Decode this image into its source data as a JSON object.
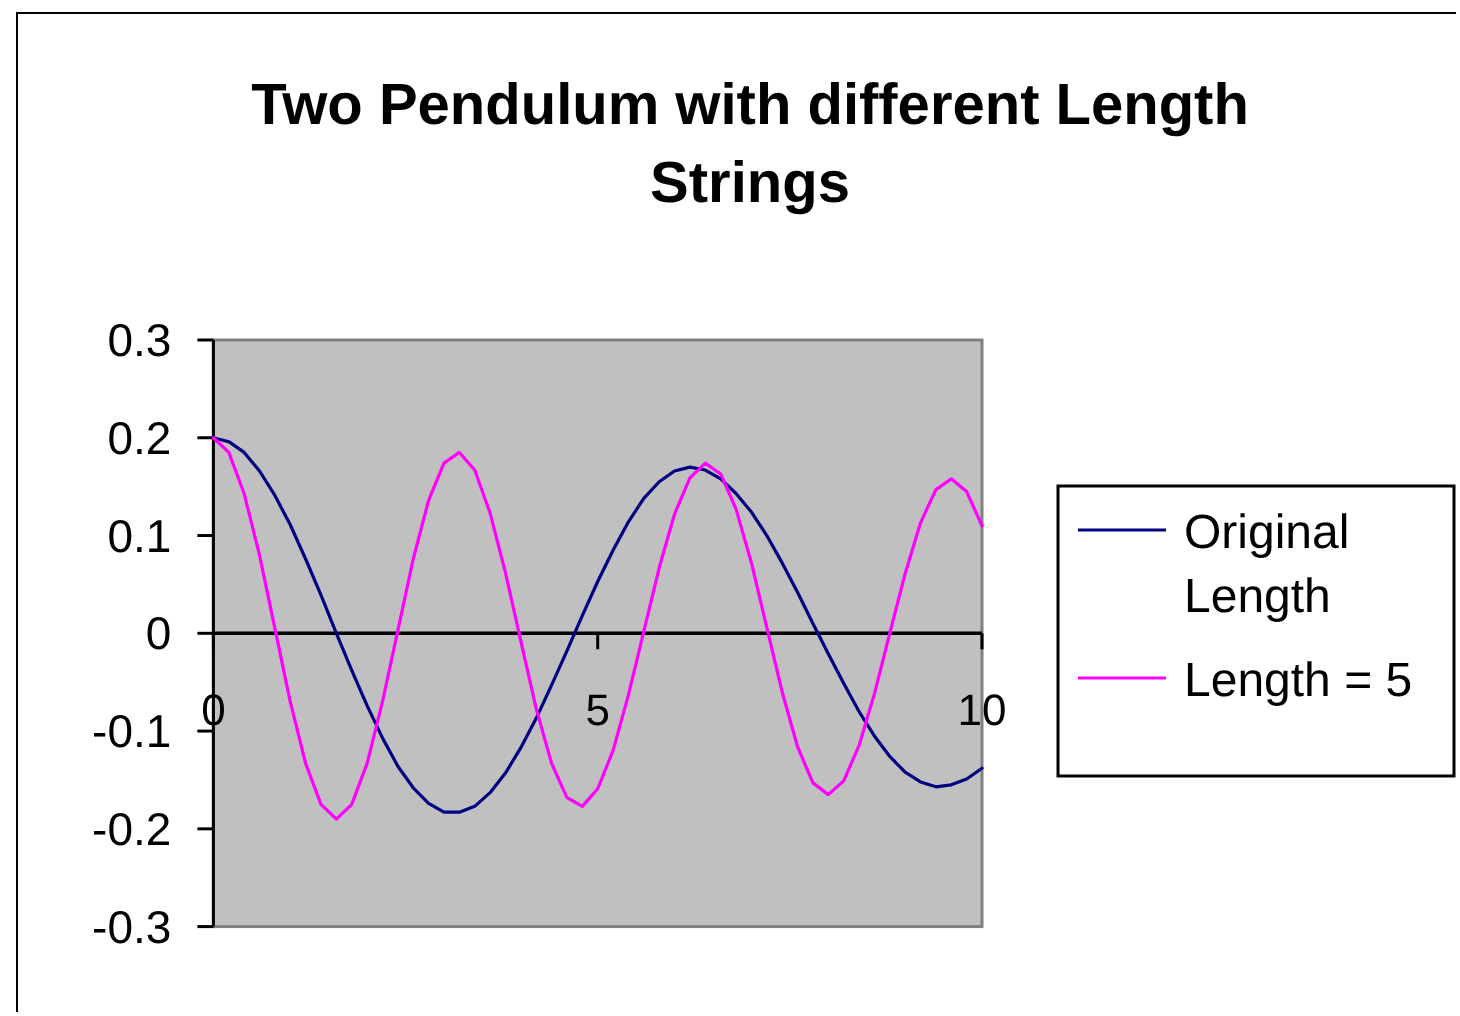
{
  "chart_data": {
    "type": "line",
    "title": "Two Pendulum with different Length Strings",
    "xlim": [
      0,
      10
    ],
    "xticks": [
      0,
      5,
      10
    ],
    "ylim": [
      -0.3,
      0.3
    ],
    "yticks": [
      -0.3,
      -0.2,
      -0.1,
      0,
      0.1,
      0.2,
      0.3
    ],
    "legend": "right",
    "x": [
      0,
      0.2,
      0.4,
      0.6,
      0.8,
      1,
      1.2,
      1.4,
      1.6,
      1.8,
      2,
      2.2,
      2.4,
      2.6,
      2.8,
      3,
      3.2,
      3.4,
      3.6,
      3.8,
      4,
      4.2,
      4.4,
      4.6,
      4.8,
      5,
      5.2,
      5.4,
      5.6,
      5.8,
      6,
      6.2,
      6.4,
      6.6,
      6.8,
      7,
      7.2,
      7.4,
      7.6,
      7.8,
      8,
      8.2,
      8.4,
      8.6,
      8.8,
      9,
      9.2,
      9.4,
      9.6,
      9.8,
      10
    ],
    "series": [
      {
        "name": "Original Length",
        "color": "#000080",
        "values": [
          0.2,
          0.196,
          0.185,
          0.166,
          0.141,
          0.111,
          0.076,
          0.039,
          0,
          -0.038,
          -0.074,
          -0.107,
          -0.136,
          -0.158,
          -0.174,
          -0.183,
          -0.183,
          -0.177,
          -0.163,
          -0.143,
          -0.117,
          -0.087,
          -0.053,
          -0.018,
          0.018,
          0.053,
          0.085,
          0.114,
          0.138,
          0.155,
          0.166,
          0.17,
          0.167,
          0.158,
          0.143,
          0.124,
          0.1,
          0.072,
          0.042,
          0.01,
          -0.021,
          -0.051,
          -0.08,
          -0.105,
          -0.126,
          -0.142,
          -0.152,
          -0.157,
          -0.155,
          -0.149,
          -0.138
        ]
      },
      {
        "name": "Length = 5",
        "color": "#ff00ff",
        "values": [
          0.2,
          0.185,
          0.143,
          0.08,
          0.005,
          -0.07,
          -0.133,
          -0.175,
          -0.19,
          -0.175,
          -0.133,
          -0.07,
          0.003,
          0.076,
          0.136,
          0.174,
          0.185,
          0.167,
          0.123,
          0.062,
          -0.008,
          -0.077,
          -0.133,
          -0.168,
          -0.177,
          -0.159,
          -0.12,
          -0.063,
          0.002,
          0.067,
          0.122,
          0.159,
          0.174,
          0.163,
          0.127,
          0.072,
          0.006,
          -0.06,
          -0.116,
          -0.153,
          -0.165,
          -0.151,
          -0.115,
          -0.062,
          0,
          0.061,
          0.113,
          0.147,
          0.158,
          0.145,
          0.11
        ]
      }
    ]
  }
}
